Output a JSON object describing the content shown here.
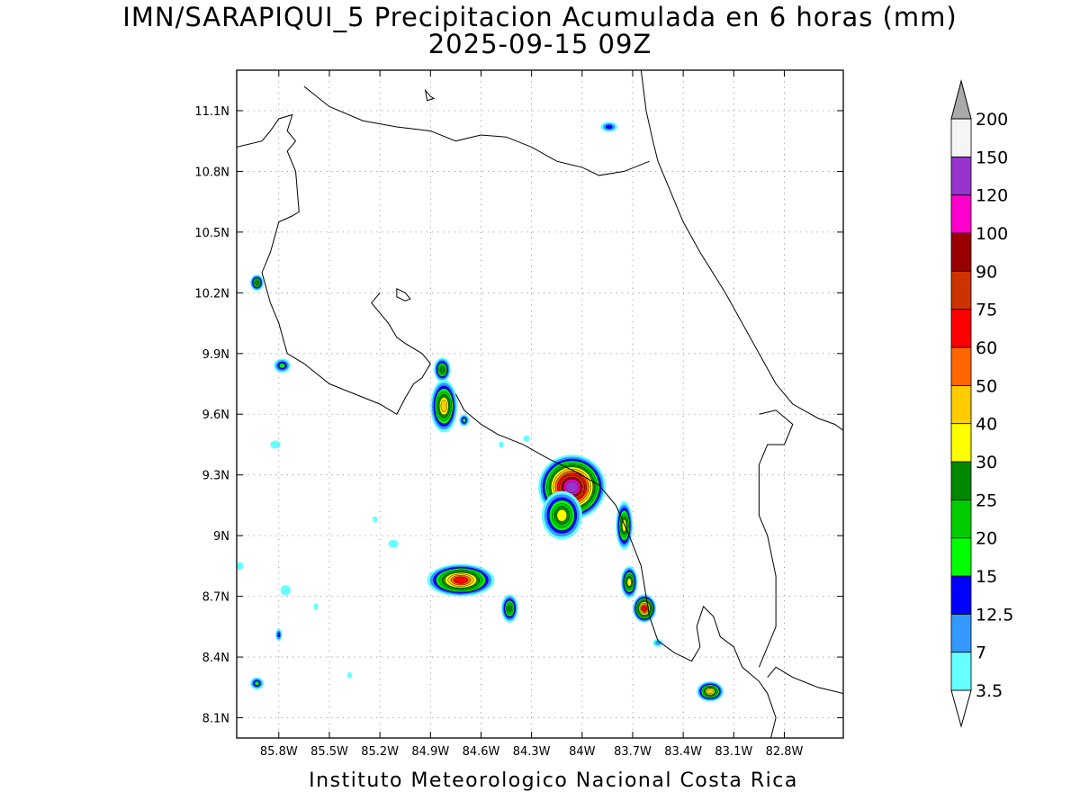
{
  "title_line1": "IMN/SARAPIQUI_5 Precipitacion Acumulada en 6 horas (mm)",
  "title_line2": "2025-09-15 09Z",
  "footer": "Instituto Meteorologico Nacional Costa Rica",
  "map": {
    "lon_range": [
      -86.05,
      -82.45
    ],
    "lat_range": [
      8.0,
      11.3
    ],
    "lon_ticks": [
      {
        "value": -85.8,
        "label": "85.8W"
      },
      {
        "value": -85.5,
        "label": "85.5W"
      },
      {
        "value": -85.2,
        "label": "85.2W"
      },
      {
        "value": -84.9,
        "label": "84.9W"
      },
      {
        "value": -84.6,
        "label": "84.6W"
      },
      {
        "value": -84.3,
        "label": "84.3W"
      },
      {
        "value": -84.0,
        "label": "84W"
      },
      {
        "value": -83.7,
        "label": "83.7W"
      },
      {
        "value": -83.4,
        "label": "83.4W"
      },
      {
        "value": -83.1,
        "label": "83.1W"
      },
      {
        "value": -82.8,
        "label": "82.8W"
      }
    ],
    "lat_ticks": [
      {
        "value": 8.1,
        "label": "8.1N"
      },
      {
        "value": 8.4,
        "label": "8.4N"
      },
      {
        "value": 8.7,
        "label": "8.7N"
      },
      {
        "value": 9.0,
        "label": "9N"
      },
      {
        "value": 9.3,
        "label": "9.3N"
      },
      {
        "value": 9.6,
        "label": "9.6N"
      },
      {
        "value": 9.9,
        "label": "9.9N"
      },
      {
        "value": 10.2,
        "label": "10.2N"
      },
      {
        "value": 10.5,
        "label": "10.5N"
      },
      {
        "value": 10.8,
        "label": "10.8N"
      },
      {
        "value": 11.1,
        "label": "11.1N"
      }
    ],
    "grid": "dotted",
    "coastlines": [
      [
        [
          -86.05,
          10.92
        ],
        [
          -85.9,
          10.95
        ],
        [
          -85.85,
          11.0
        ],
        [
          -85.8,
          11.06
        ],
        [
          -85.72,
          11.08
        ],
        [
          -85.75,
          11.0
        ],
        [
          -85.7,
          10.95
        ],
        [
          -85.75,
          10.9
        ],
        [
          -85.7,
          10.8
        ],
        [
          -85.68,
          10.6
        ],
        [
          -85.72,
          10.58
        ],
        [
          -85.8,
          10.55
        ],
        [
          -85.85,
          10.4
        ],
        [
          -85.9,
          10.3
        ],
        [
          -85.85,
          10.15
        ],
        [
          -85.8,
          10.05
        ],
        [
          -85.75,
          9.9
        ],
        [
          -85.65,
          9.85
        ],
        [
          -85.5,
          9.75
        ],
        [
          -85.35,
          9.7
        ],
        [
          -85.2,
          9.65
        ],
        [
          -85.1,
          9.6
        ],
        [
          -85.05,
          9.68
        ],
        [
          -85.0,
          9.75
        ],
        [
          -84.95,
          9.78
        ],
        [
          -84.9,
          9.85
        ],
        [
          -84.95,
          9.9
        ],
        [
          -85.05,
          9.95
        ],
        [
          -85.1,
          9.98
        ],
        [
          -85.15,
          10.05
        ],
        [
          -85.2,
          10.1
        ],
        [
          -85.25,
          10.15
        ],
        [
          -85.2,
          10.2
        ]
      ],
      [
        [
          -84.75,
          9.7
        ],
        [
          -84.7,
          9.62
        ],
        [
          -84.6,
          9.55
        ],
        [
          -84.5,
          9.5
        ],
        [
          -84.35,
          9.45
        ],
        [
          -84.2,
          9.38
        ],
        [
          -84.05,
          9.32
        ],
        [
          -83.9,
          9.25
        ],
        [
          -83.8,
          9.15
        ],
        [
          -83.72,
          9.0
        ],
        [
          -83.65,
          8.85
        ],
        [
          -83.62,
          8.7
        ],
        [
          -83.6,
          8.6
        ],
        [
          -83.55,
          8.48
        ],
        [
          -83.45,
          8.42
        ],
        [
          -83.35,
          8.38
        ],
        [
          -83.3,
          8.45
        ],
        [
          -83.32,
          8.55
        ],
        [
          -83.28,
          8.65
        ],
        [
          -83.22,
          8.6
        ],
        [
          -83.18,
          8.5
        ],
        [
          -83.1,
          8.45
        ],
        [
          -83.05,
          8.35
        ],
        [
          -82.95,
          8.28
        ],
        [
          -82.9,
          8.22
        ],
        [
          -82.85,
          8.1
        ],
        [
          -82.88,
          8.0
        ]
      ],
      [
        [
          -82.45,
          8.22
        ],
        [
          -82.6,
          8.25
        ],
        [
          -82.75,
          8.3
        ],
        [
          -82.85,
          8.35
        ],
        [
          -82.9,
          8.3
        ]
      ],
      [
        [
          -83.65,
          11.3
        ],
        [
          -83.62,
          11.1
        ],
        [
          -83.58,
          10.95
        ],
        [
          -83.55,
          10.85
        ],
        [
          -83.5,
          10.75
        ],
        [
          -83.4,
          10.55
        ],
        [
          -83.3,
          10.4
        ],
        [
          -83.15,
          10.2
        ],
        [
          -83.05,
          10.05
        ],
        [
          -82.95,
          9.9
        ],
        [
          -82.85,
          9.75
        ],
        [
          -82.75,
          9.65
        ],
        [
          -82.6,
          9.58
        ],
        [
          -82.5,
          9.55
        ],
        [
          -82.45,
          9.52
        ]
      ],
      [
        [
          -85.65,
          11.22
        ],
        [
          -85.5,
          11.12
        ],
        [
          -85.3,
          11.05
        ],
        [
          -85.1,
          11.02
        ],
        [
          -84.9,
          11.0
        ],
        [
          -84.75,
          10.95
        ],
        [
          -84.6,
          10.98
        ],
        [
          -84.45,
          10.97
        ],
        [
          -84.3,
          10.92
        ],
        [
          -84.15,
          10.85
        ],
        [
          -84.0,
          10.82
        ],
        [
          -83.9,
          10.78
        ],
        [
          -83.75,
          10.8
        ],
        [
          -83.6,
          10.85
        ]
      ],
      [
        [
          -82.95,
          9.6
        ],
        [
          -82.85,
          9.62
        ],
        [
          -82.75,
          9.55
        ],
        [
          -82.8,
          9.45
        ],
        [
          -82.9,
          9.45
        ],
        [
          -82.95,
          9.35
        ],
        [
          -82.95,
          9.1
        ],
        [
          -82.9,
          9.0
        ],
        [
          -82.85,
          8.8
        ],
        [
          -82.85,
          8.55
        ],
        [
          -82.95,
          8.35
        ]
      ]
    ],
    "islands": [
      [
        [
          -85.1,
          10.22
        ],
        [
          -85.05,
          10.2
        ],
        [
          -85.02,
          10.17
        ],
        [
          -85.05,
          10.16
        ],
        [
          -85.1,
          10.18
        ]
      ],
      [
        [
          -84.93,
          11.2
        ],
        [
          -84.9,
          11.17
        ],
        [
          -84.88,
          11.16
        ],
        [
          -84.92,
          11.15
        ]
      ]
    ],
    "precip_cells": [
      {
        "lon": -85.93,
        "lat": 10.25,
        "rx": 0.04,
        "ry": 0.04,
        "max": 25
      },
      {
        "lon": -85.78,
        "lat": 9.84,
        "rx": 0.05,
        "ry": 0.035,
        "max": 15
      },
      {
        "lon": -85.82,
        "lat": 9.45,
        "rx": 0.03,
        "ry": 0.02,
        "max": 3.5
      },
      {
        "lon": -84.83,
        "lat": 9.82,
        "rx": 0.05,
        "ry": 0.06,
        "max": 25
      },
      {
        "lon": -84.82,
        "lat": 9.64,
        "rx": 0.08,
        "ry": 0.13,
        "max": 40
      },
      {
        "lon": -84.7,
        "lat": 9.57,
        "rx": 0.03,
        "ry": 0.03,
        "max": 15
      },
      {
        "lon": -84.06,
        "lat": 9.24,
        "rx": 0.2,
        "ry": 0.16,
        "max": 120
      },
      {
        "lon": -84.12,
        "lat": 9.1,
        "rx": 0.12,
        "ry": 0.12,
        "max": 30
      },
      {
        "lon": -83.75,
        "lat": 9.05,
        "rx": 0.05,
        "ry": 0.12,
        "max": 30
      },
      {
        "lon": -83.72,
        "lat": 8.77,
        "rx": 0.05,
        "ry": 0.08,
        "max": 30
      },
      {
        "lon": -83.63,
        "lat": 8.64,
        "rx": 0.07,
        "ry": 0.07,
        "max": 60
      },
      {
        "lon": -84.72,
        "lat": 8.78,
        "rx": 0.2,
        "ry": 0.08,
        "max": 60
      },
      {
        "lon": -84.43,
        "lat": 8.64,
        "rx": 0.05,
        "ry": 0.07,
        "max": 25
      },
      {
        "lon": -83.24,
        "lat": 8.23,
        "rx": 0.08,
        "ry": 0.05,
        "max": 40
      },
      {
        "lon": -85.93,
        "lat": 8.27,
        "rx": 0.04,
        "ry": 0.03,
        "max": 15
      },
      {
        "lon": -85.8,
        "lat": 8.51,
        "rx": 0.02,
        "ry": 0.03,
        "max": 12.5
      },
      {
        "lon": -85.76,
        "lat": 8.73,
        "rx": 0.03,
        "ry": 0.025,
        "max": 3.5
      },
      {
        "lon": -85.58,
        "lat": 8.65,
        "rx": 0.015,
        "ry": 0.015,
        "max": 3.5
      },
      {
        "lon": -85.38,
        "lat": 8.31,
        "rx": 0.015,
        "ry": 0.015,
        "max": 3.5
      },
      {
        "lon": -85.12,
        "lat": 8.96,
        "rx": 0.03,
        "ry": 0.02,
        "max": 3.5
      },
      {
        "lon": -85.23,
        "lat": 9.08,
        "rx": 0.015,
        "ry": 0.015,
        "max": 3.5
      },
      {
        "lon": -86.03,
        "lat": 8.85,
        "rx": 0.02,
        "ry": 0.02,
        "max": 3.5
      },
      {
        "lon": -83.84,
        "lat": 11.02,
        "rx": 0.05,
        "ry": 0.025,
        "max": 12.5
      },
      {
        "lon": -83.55,
        "lat": 8.47,
        "rx": 0.03,
        "ry": 0.02,
        "max": 7
      },
      {
        "lon": -84.48,
        "lat": 9.45,
        "rx": 0.015,
        "ry": 0.015,
        "max": 3.5
      },
      {
        "lon": -84.33,
        "lat": 9.48,
        "rx": 0.02,
        "ry": 0.015,
        "max": 3.5
      }
    ]
  },
  "legend": {
    "levels": [
      {
        "label": "3.5",
        "color": "#66ffff"
      },
      {
        "label": "7",
        "color": "#3399ff"
      },
      {
        "label": "12.5",
        "color": "#0000ff"
      },
      {
        "label": "15",
        "color": "#00ff00"
      },
      {
        "label": "20",
        "color": "#00cc00"
      },
      {
        "label": "25",
        "color": "#008800"
      },
      {
        "label": "30",
        "color": "#ffff00"
      },
      {
        "label": "40",
        "color": "#ffcc00"
      },
      {
        "label": "50",
        "color": "#ff6600"
      },
      {
        "label": "60",
        "color": "#ff0000"
      },
      {
        "label": "75",
        "color": "#cc3300"
      },
      {
        "label": "90",
        "color": "#990000"
      },
      {
        "label": "100",
        "color": "#ff00cc"
      },
      {
        "label": "120",
        "color": "#9933cc"
      },
      {
        "label": "150",
        "color": "#f5f5f5"
      },
      {
        "label": "200",
        "color": "#aaaaaa"
      }
    ],
    "lower_arrow_color": "#ffffff",
    "upper_arrow_color": "#aaaaaa"
  }
}
